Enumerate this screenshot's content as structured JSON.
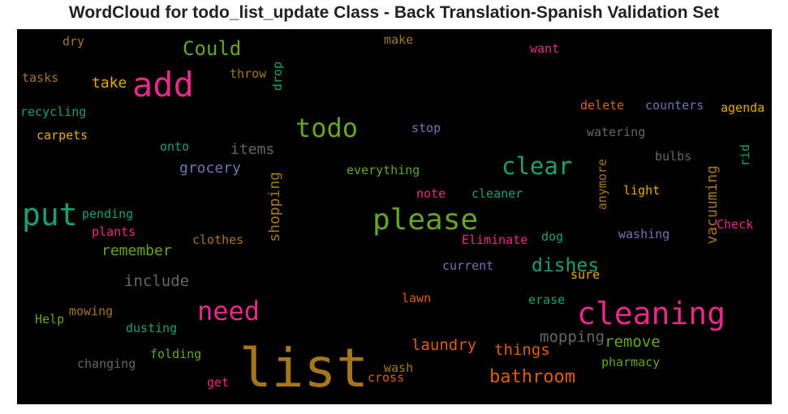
{
  "chart_data": {
    "type": "wordcloud",
    "title": "WordCloud for todo_list_update Class - Back Translation-Spanish Validation Set",
    "background": "#000000",
    "words": [
      {
        "text": "list",
        "color": "#a6761d"
      },
      {
        "text": "cleaning",
        "color": "#e7298a"
      },
      {
        "text": "please",
        "color": "#66a61e"
      },
      {
        "text": "put",
        "color": "#1b9e77"
      },
      {
        "text": "add",
        "color": "#e7298a"
      },
      {
        "text": "todo",
        "color": "#66a61e"
      },
      {
        "text": "need",
        "color": "#e7298a"
      },
      {
        "text": "clear",
        "color": "#1b9e77"
      },
      {
        "text": "bathroom",
        "color": "#d95f02"
      },
      {
        "text": "Could",
        "color": "#66a61e"
      },
      {
        "text": "dishes",
        "color": "#1b9e77"
      },
      {
        "text": "remove",
        "color": "#66a61e"
      },
      {
        "text": "things",
        "color": "#d95f02"
      },
      {
        "text": "mopping",
        "color": "#666666"
      },
      {
        "text": "laundry",
        "color": "#d95f02"
      },
      {
        "text": "include",
        "color": "#666666"
      },
      {
        "text": "remember",
        "color": "#66a61e"
      },
      {
        "text": "grocery",
        "color": "#7570b3"
      },
      {
        "text": "items",
        "color": "#666666"
      },
      {
        "text": "take",
        "color": "#e6ab02"
      },
      {
        "text": "shopping",
        "color": "#a6761d"
      },
      {
        "text": "vacuuming",
        "color": "#a6761d"
      },
      {
        "text": "everything",
        "color": "#66a61e"
      },
      {
        "text": "pending",
        "color": "#1b9e77"
      },
      {
        "text": "plants",
        "color": "#e7298a"
      },
      {
        "text": "clothes",
        "color": "#a6761d"
      },
      {
        "text": "Eliminate",
        "color": "#e7298a"
      },
      {
        "text": "dog",
        "color": "#1b9e77"
      },
      {
        "text": "washing",
        "color": "#7570b3"
      },
      {
        "text": "Check",
        "color": "#e7298a"
      },
      {
        "text": "current",
        "color": "#7570b3"
      },
      {
        "text": "sure",
        "color": "#e6ab02"
      },
      {
        "text": "lawn",
        "color": "#d95f02"
      },
      {
        "text": "erase",
        "color": "#1b9e77"
      },
      {
        "text": "mowing",
        "color": "#a6761d"
      },
      {
        "text": "Help",
        "color": "#66a61e"
      },
      {
        "text": "dusting",
        "color": "#1b9e77"
      },
      {
        "text": "changing",
        "color": "#666666"
      },
      {
        "text": "folding",
        "color": "#66a61e"
      },
      {
        "text": "get",
        "color": "#e7298a"
      },
      {
        "text": "wash",
        "color": "#a6761d"
      },
      {
        "text": "cross",
        "color": "#d95f02"
      },
      {
        "text": "pharmacy",
        "color": "#66a61e"
      },
      {
        "text": "dry",
        "color": "#a6761d"
      },
      {
        "text": "make",
        "color": "#a6761d"
      },
      {
        "text": "want",
        "color": "#e7298a"
      },
      {
        "text": "tasks",
        "color": "#a6761d"
      },
      {
        "text": "throw",
        "color": "#a6761d"
      },
      {
        "text": "drop",
        "color": "#1b9e77"
      },
      {
        "text": "recycling",
        "color": "#1b9e77"
      },
      {
        "text": "carpets",
        "color": "#e6ab02"
      },
      {
        "text": "onto",
        "color": "#1b9e77"
      },
      {
        "text": "stop",
        "color": "#7570b3"
      },
      {
        "text": "delete",
        "color": "#d95f02"
      },
      {
        "text": "counters",
        "color": "#7570b3"
      },
      {
        "text": "agenda",
        "color": "#e6ab02"
      },
      {
        "text": "watering",
        "color": "#666666"
      },
      {
        "text": "bulbs",
        "color": "#666666"
      },
      {
        "text": "rid",
        "color": "#1b9e77"
      },
      {
        "text": "anymore",
        "color": "#a6761d"
      },
      {
        "text": "light",
        "color": "#e6ab02"
      },
      {
        "text": "note",
        "color": "#e7298a"
      },
      {
        "text": "cleaner",
        "color": "#1b9e77"
      }
    ]
  }
}
